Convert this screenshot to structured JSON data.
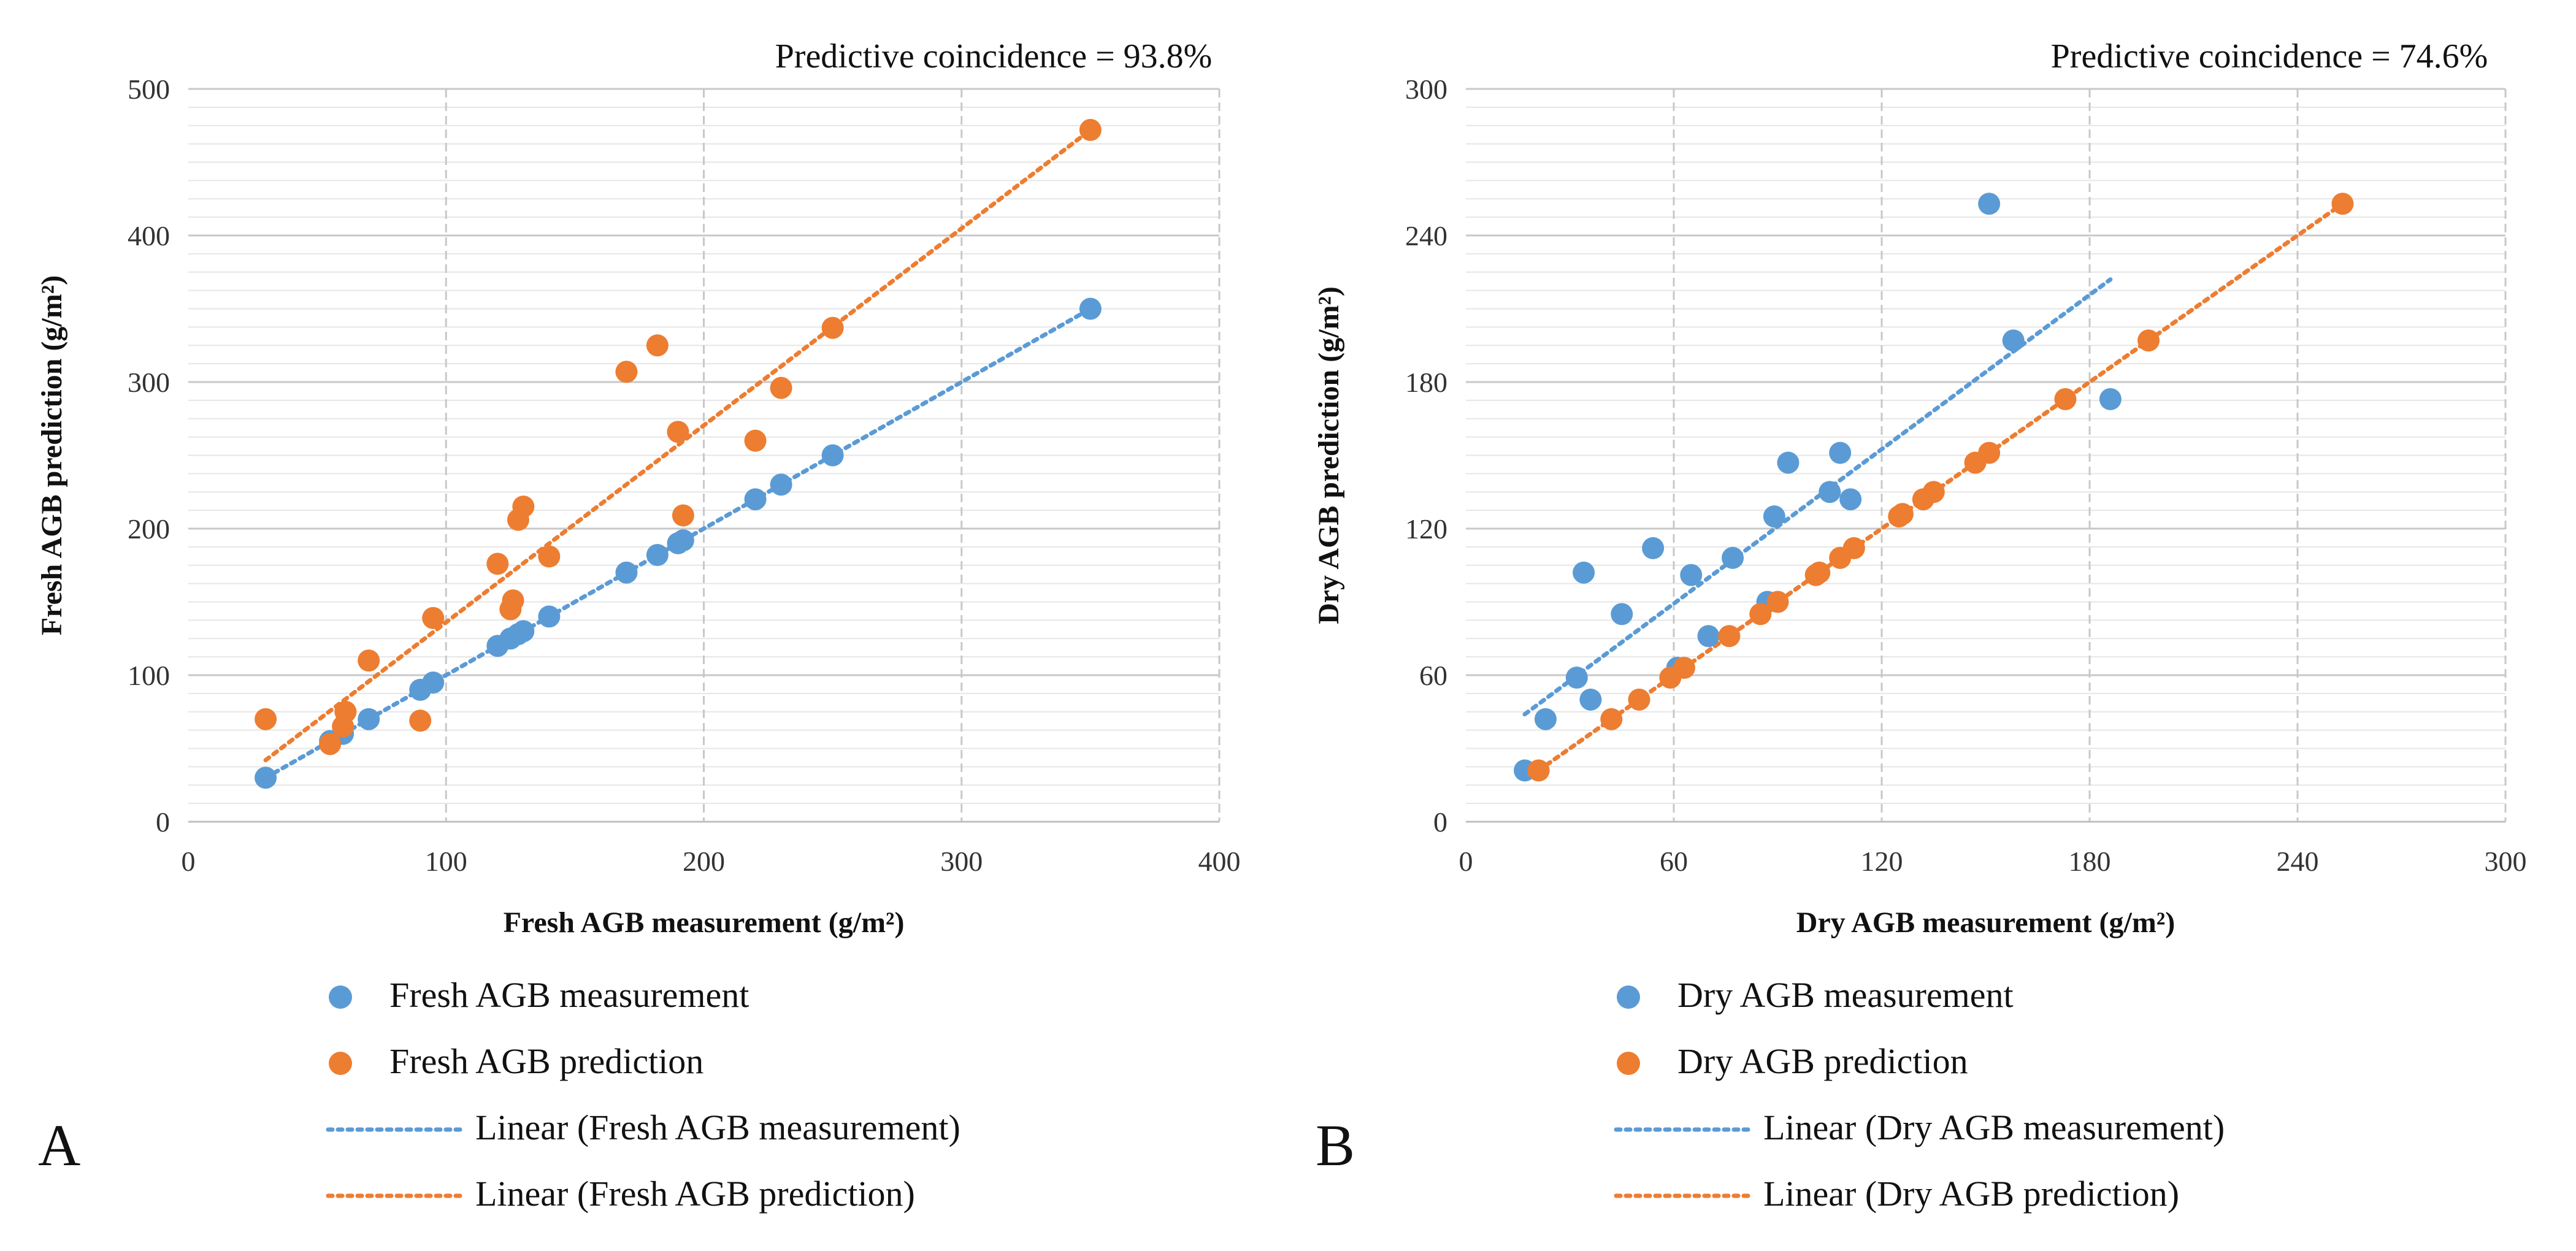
{
  "colors": {
    "measurement": "#5B9BD5",
    "prediction": "#ED7D31",
    "grid_major": "#c8c8c8",
    "grid_minor": "#e6e6e6",
    "text": "#111111"
  },
  "chart_data": [
    {
      "type": "scatter",
      "panel_label": "A",
      "title": "Predictive coincidence = 93.8%",
      "xlabel": "Fresh AGB measurement (g/m²)",
      "ylabel": "Fresh AGB prediction (g/m²)",
      "xlim": [
        0,
        400
      ],
      "ylim": [
        0,
        500
      ],
      "xticks": [
        "0",
        "100",
        "200",
        "300",
        "400"
      ],
      "yticks": [
        "0",
        "100",
        "200",
        "300",
        "400",
        "500"
      ],
      "grid": true,
      "legend_position": "bottom",
      "legend": [
        "Fresh AGB measurement",
        "Fresh AGB prediction",
        "Linear (Fresh AGB measurement)",
        "Linear (Fresh AGB prediction)"
      ],
      "series": [
        {
          "name": "Fresh AGB measurement",
          "kind": "points",
          "color_key": "measurement",
          "x": [
            30,
            55,
            60,
            70,
            90,
            95,
            120,
            125,
            128,
            130,
            140,
            170,
            182,
            190,
            192,
            220,
            230,
            250,
            350
          ],
          "y": [
            30,
            55,
            60,
            70,
            90,
            95,
            120,
            125,
            128,
            130,
            140,
            170,
            182,
            190,
            192,
            220,
            230,
            250,
            350
          ]
        },
        {
          "name": "Fresh AGB prediction",
          "kind": "points",
          "color_key": "prediction",
          "x": [
            30,
            55,
            60,
            61,
            70,
            90,
            95,
            120,
            125,
            126,
            128,
            130,
            140,
            170,
            182,
            190,
            192,
            220,
            230,
            250,
            350
          ],
          "y": [
            70,
            53,
            65,
            75,
            110,
            69,
            139,
            176,
            145,
            151,
            206,
            215,
            181,
            307,
            325,
            266,
            209,
            260,
            296,
            337,
            472
          ]
        },
        {
          "name": "Linear (Fresh AGB measurement)",
          "kind": "trend",
          "color_key": "measurement",
          "x": [
            30,
            350
          ],
          "y": [
            30,
            350
          ]
        },
        {
          "name": "Linear (Fresh AGB prediction)",
          "kind": "trend",
          "color_key": "prediction",
          "x": [
            30,
            350
          ],
          "y": [
            42,
            472
          ]
        }
      ]
    },
    {
      "type": "scatter",
      "panel_label": "B",
      "title": "Predictive coincidence = 74.6%",
      "xlabel": "Dry AGB measurement (g/m²)",
      "ylabel": "Dry AGB prediction (g/m²)",
      "xlim": [
        0,
        300
      ],
      "ylim": [
        0,
        300
      ],
      "xticks": [
        "0",
        "60",
        "120",
        "180",
        "240",
        "300"
      ],
      "yticks": [
        "0",
        "60",
        "120",
        "180",
        "240",
        "300"
      ],
      "grid": true,
      "legend_position": "bottom",
      "legend": [
        "Dry AGB measurement",
        "Dry AGB prediction",
        "Linear (Dry AGB measurement)",
        "Linear (Dry AGB prediction)"
      ],
      "series": [
        {
          "name": "Dry AGB measurement",
          "kind": "points",
          "color_key": "measurement",
          "x": [
            17,
            23,
            32,
            34,
            36,
            45,
            54,
            61,
            65,
            70,
            77,
            87,
            89,
            93,
            105,
            108,
            111,
            151,
            158,
            186
          ],
          "y": [
            21,
            42,
            59,
            102,
            50,
            85,
            112,
            63,
            101,
            76,
            108,
            90,
            125,
            147,
            135,
            151,
            132,
            253,
            197,
            173
          ]
        },
        {
          "name": "Dry AGB prediction",
          "kind": "points",
          "color_key": "prediction",
          "x": [
            21,
            42,
            50,
            59,
            63,
            76,
            85,
            90,
            101,
            102,
            108,
            112,
            125,
            126,
            132,
            135,
            147,
            151,
            173,
            197,
            253
          ],
          "y": [
            21,
            42,
            50,
            59,
            63,
            76,
            85,
            90,
            101,
            102,
            108,
            112,
            125,
            126,
            132,
            135,
            147,
            151,
            173,
            197,
            253
          ]
        },
        {
          "name": "Linear (Dry AGB measurement)",
          "kind": "trend",
          "color_key": "measurement",
          "x": [
            17,
            186
          ],
          "y": [
            44,
            222
          ]
        },
        {
          "name": "Linear (Dry AGB prediction)",
          "kind": "trend",
          "color_key": "prediction",
          "x": [
            21,
            253
          ],
          "y": [
            21,
            253
          ]
        }
      ]
    }
  ]
}
